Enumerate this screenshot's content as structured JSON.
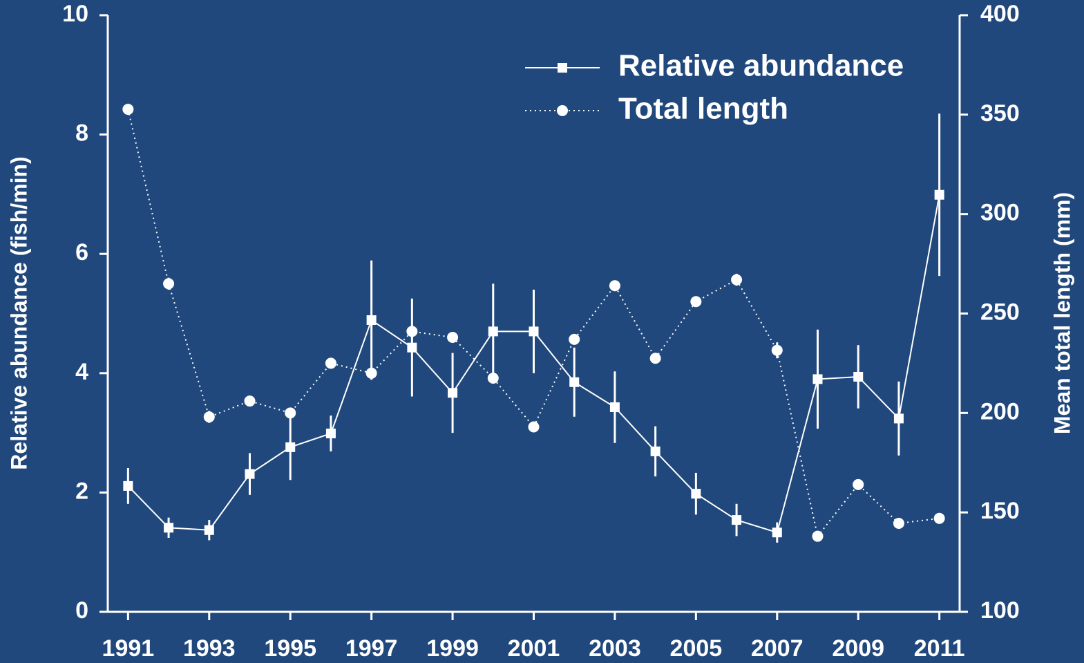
{
  "chart_data": {
    "type": "line",
    "ylabel": "Relative abundance (fish/min)",
    "y2label": "Mean total length (mm)",
    "x": [
      1991,
      1992,
      1993,
      1994,
      1995,
      1996,
      1997,
      1998,
      1999,
      2000,
      2001,
      2002,
      2003,
      2004,
      2005,
      2006,
      2007,
      2008,
      2009,
      2010,
      2011
    ],
    "xlim": [
      1990.5,
      2011.5
    ],
    "xticks": [
      1991,
      1993,
      1995,
      1997,
      1999,
      2001,
      2003,
      2005,
      2007,
      2009,
      2011
    ],
    "ylim": [
      0,
      10
    ],
    "yticks": [
      0,
      2,
      4,
      6,
      8,
      10
    ],
    "y2lim": [
      100,
      400
    ],
    "y2ticks": [
      100,
      150,
      200,
      250,
      300,
      350,
      400
    ],
    "legend": "upper right",
    "series": [
      {
        "name": "Relative abundance",
        "color": "#ffffff",
        "marker": "square",
        "linestyle": "solid",
        "values": [
          2.11,
          1.41,
          1.37,
          2.31,
          2.76,
          2.99,
          4.89,
          4.43,
          3.67,
          4.7,
          4.7,
          3.85,
          3.43,
          2.69,
          1.98,
          1.54,
          1.33,
          3.9,
          3.94,
          3.24,
          6.99
        ],
        "errors": [
          0.3,
          0.17,
          0.17,
          0.35,
          0.55,
          0.3,
          1.0,
          0.82,
          0.67,
          0.8,
          0.7,
          0.58,
          0.6,
          0.42,
          0.35,
          0.27,
          0.17,
          0.83,
          0.53,
          0.62,
          1.36
        ]
      },
      {
        "name": "Total length",
        "color": "#ffffff",
        "marker": "circle",
        "linestyle": "dotted",
        "axis": "y2",
        "values": [
          352.7,
          265,
          198,
          206,
          200,
          225,
          220,
          241,
          238,
          217.5,
          193,
          237,
          264,
          227.5,
          256,
          267,
          231.5,
          138,
          164,
          144.5,
          147
        ],
        "errors": [
          2.5,
          3,
          3,
          2,
          2.5,
          2,
          3,
          3,
          2,
          2,
          2,
          2,
          2,
          2.5,
          2,
          3,
          4,
          2,
          2,
          2,
          2
        ]
      }
    ]
  }
}
